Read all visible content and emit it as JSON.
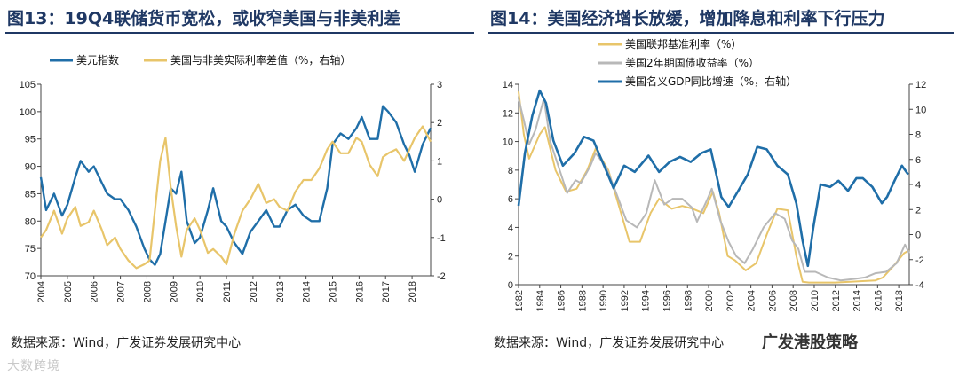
{
  "left": {
    "title": "图13：19Q4联储货币宽松，或收窄美国与非美利差",
    "source": "数据来源：Wind，广发证券发展研究中心"
  },
  "right": {
    "title": "图14：美国经济增长放缓，增加降息和利率下行压力",
    "source": "数据来源：Wind，广发证券发展研究中心"
  },
  "watermarks": {
    "bottom_left": "大数跨境",
    "bottom_right": "广发港股策略"
  },
  "colors": {
    "blue": "#1f6ea8",
    "gold": "#e8c56a",
    "gray": "#b8b8b8"
  },
  "chart_data": [
    {
      "type": "line",
      "title": "19Q4联储货币宽松，或收窄美国与非美利差",
      "xlabel": "",
      "ylabel": "",
      "x_ticks": [
        "2004",
        "2005",
        "2006",
        "2007",
        "2008",
        "2009",
        "2010",
        "2011",
        "2012",
        "2013",
        "2014",
        "2015",
        "2016",
        "2017",
        "2018"
      ],
      "xlim": [
        2004,
        2018.7
      ],
      "ylim": [
        70,
        105
      ],
      "y_ticks": [
        "70",
        "75",
        "80",
        "85",
        "90",
        "95",
        "100",
        "105"
      ],
      "y2lim": [
        -2,
        3
      ],
      "y2_ticks": [
        "-2",
        "-1",
        "0",
        "1",
        "2",
        "3"
      ],
      "legend": "top",
      "series": [
        {
          "name": "美元指数",
          "axis": "left",
          "color": "#1f6ea8",
          "x": [
            2004.0,
            2004.2,
            2004.5,
            2004.8,
            2005.0,
            2005.3,
            2005.5,
            2005.8,
            2006.0,
            2006.3,
            2006.5,
            2006.8,
            2007.0,
            2007.3,
            2007.6,
            2007.9,
            2008.1,
            2008.3,
            2008.5,
            2008.7,
            2008.9,
            2009.1,
            2009.3,
            2009.5,
            2009.8,
            2010.0,
            2010.3,
            2010.5,
            2010.8,
            2011.0,
            2011.3,
            2011.6,
            2011.9,
            2012.2,
            2012.5,
            2012.8,
            2013.0,
            2013.3,
            2013.6,
            2013.9,
            2014.2,
            2014.5,
            2014.8,
            2015.0,
            2015.3,
            2015.6,
            2015.9,
            2016.1,
            2016.4,
            2016.7,
            2016.9,
            2017.1,
            2017.4,
            2017.7,
            2017.9,
            2018.1,
            2018.4,
            2018.7
          ],
          "values": [
            88,
            82,
            85,
            81,
            83,
            88,
            91,
            89,
            90,
            87,
            85,
            84,
            84,
            82,
            79,
            75,
            73,
            72,
            74,
            80,
            86,
            85,
            89,
            80,
            76,
            77,
            82,
            86,
            80,
            79,
            76,
            74,
            78,
            80,
            82,
            79,
            79,
            82,
            83,
            81,
            80,
            80,
            86,
            94,
            96,
            95,
            97,
            99,
            95,
            95,
            101,
            100,
            98,
            94,
            92,
            89,
            94,
            97
          ]
        },
        {
          "name": "美国与非美实际利率差值（%，右轴）",
          "axis": "right",
          "color": "#e8c56a",
          "x": [
            2004.0,
            2004.2,
            2004.5,
            2004.8,
            2005.0,
            2005.3,
            2005.5,
            2005.8,
            2006.0,
            2006.3,
            2006.5,
            2006.8,
            2007.0,
            2007.3,
            2007.6,
            2007.9,
            2008.1,
            2008.3,
            2008.5,
            2008.7,
            2008.9,
            2009.1,
            2009.3,
            2009.5,
            2009.8,
            2010.0,
            2010.3,
            2010.5,
            2010.8,
            2011.0,
            2011.3,
            2011.6,
            2011.9,
            2012.2,
            2012.5,
            2012.8,
            2013.0,
            2013.3,
            2013.6,
            2013.9,
            2014.2,
            2014.5,
            2014.8,
            2015.0,
            2015.3,
            2015.6,
            2015.9,
            2016.1,
            2016.4,
            2016.7,
            2016.9,
            2017.1,
            2017.4,
            2017.7,
            2017.9,
            2018.1,
            2018.4,
            2018.7
          ],
          "values": [
            -1.0,
            -0.8,
            -0.3,
            -0.9,
            -0.5,
            -0.2,
            -0.7,
            -0.6,
            -0.3,
            -0.8,
            -1.2,
            -1.0,
            -1.3,
            -1.6,
            -1.8,
            -1.7,
            -1.6,
            -0.3,
            1.0,
            1.6,
            0.3,
            -0.7,
            -1.5,
            -0.8,
            -0.5,
            -0.8,
            -1.4,
            -1.3,
            -1.5,
            -1.7,
            -0.9,
            -0.3,
            0.0,
            0.4,
            -0.1,
            0.0,
            -0.2,
            -0.3,
            0.2,
            0.5,
            0.5,
            0.8,
            1.3,
            1.5,
            1.2,
            1.2,
            1.6,
            1.5,
            0.9,
            0.6,
            1.1,
            1.2,
            1.3,
            1.0,
            1.3,
            1.6,
            1.9,
            1.5
          ]
        }
      ]
    },
    {
      "type": "line",
      "title": "美国经济增长放缓，增加降息和利率下行压力",
      "xlabel": "",
      "ylabel": "",
      "x_ticks": [
        "1982",
        "1984",
        "1986",
        "1988",
        "1990",
        "1992",
        "1994",
        "1996",
        "1998",
        "2000",
        "2002",
        "2004",
        "2006",
        "2008",
        "2010",
        "2012",
        "2014",
        "2016",
        "2018"
      ],
      "xlim": [
        1982,
        2019
      ],
      "ylim": [
        0,
        14
      ],
      "y_ticks": [
        "0",
        "2",
        "4",
        "6",
        "8",
        "10",
        "12",
        "14"
      ],
      "y2lim": [
        -4,
        12
      ],
      "y2_ticks": [
        "-4",
        "-2",
        "0",
        "2",
        "4",
        "6",
        "8",
        "10",
        "12"
      ],
      "legend": "top-left",
      "series": [
        {
          "name": "美国联邦基准利率（%）",
          "axis": "left",
          "color": "#e8c56a",
          "x": [
            1982.0,
            1982.5,
            1983.0,
            1984.0,
            1984.5,
            1985.5,
            1986.5,
            1987.5,
            1988.5,
            1989.3,
            1990.5,
            1991.5,
            1992.5,
            1993.5,
            1994.5,
            1995.3,
            1996.5,
            1997.5,
            1998.5,
            1999.5,
            2000.4,
            2001.0,
            2001.8,
            2002.5,
            2003.5,
            2004.5,
            2005.5,
            2006.5,
            2007.5,
            2008.3,
            2008.9,
            2009.5,
            2012.0,
            2015.8,
            2016.5,
            2017.5,
            2018.5,
            2019.0
          ],
          "values": [
            13.5,
            10.5,
            8.8,
            10.5,
            11.0,
            8.0,
            6.5,
            6.7,
            8.0,
            9.5,
            8.0,
            5.5,
            3.0,
            3.0,
            5.0,
            6.0,
            5.3,
            5.5,
            5.3,
            5.0,
            6.5,
            5.0,
            2.0,
            1.7,
            1.0,
            1.5,
            3.5,
            5.3,
            5.2,
            2.0,
            0.2,
            0.15,
            0.15,
            0.3,
            0.5,
            1.3,
            2.2,
            2.4
          ]
        },
        {
          "name": "美国2年期国债收益率（%）",
          "axis": "left",
          "color": "#b8b8b8",
          "x": [
            1982.0,
            1982.5,
            1983.0,
            1983.6,
            1984.4,
            1985.0,
            1985.8,
            1986.6,
            1987.4,
            1987.9,
            1988.8,
            1989.3,
            1990.3,
            1991.2,
            1992.2,
            1993.2,
            1994.1,
            1994.9,
            1995.8,
            1996.6,
            1997.5,
            1998.4,
            1998.9,
            1999.9,
            2000.3,
            2001.1,
            2001.9,
            2002.6,
            2003.4,
            2004.2,
            2005.2,
            2006.3,
            2007.2,
            2007.9,
            2008.5,
            2009.1,
            2010.1,
            2011.3,
            2012.5,
            2013.8,
            2014.8,
            2015.8,
            2016.8,
            2017.8,
            2018.6,
            2019.0
          ],
          "values": [
            13.0,
            11.5,
            9.8,
            10.8,
            13.0,
            10.0,
            8.2,
            6.4,
            7.3,
            7.1,
            8.3,
            9.2,
            8.2,
            6.5,
            4.5,
            4.0,
            5.0,
            7.3,
            5.6,
            6.0,
            6.0,
            5.4,
            4.4,
            6.0,
            6.7,
            4.5,
            3.0,
            2.0,
            1.5,
            2.5,
            4.0,
            5.0,
            4.6,
            3.1,
            2.5,
            0.9,
            0.9,
            0.5,
            0.3,
            0.4,
            0.5,
            0.8,
            0.9,
            1.5,
            2.8,
            2.2
          ]
        },
        {
          "name": "美国名义GDP同比增速（%，右轴）",
          "axis": "right",
          "color": "#1f6ea8",
          "x": [
            1982.0,
            1982.6,
            1983.3,
            1984.0,
            1984.6,
            1985.3,
            1986.2,
            1987.3,
            1988.2,
            1989.1,
            1990.1,
            1991.0,
            1992.0,
            1993.0,
            1994.3,
            1995.3,
            1996.3,
            1997.3,
            1998.3,
            1999.3,
            2000.2,
            2001.2,
            2001.9,
            2002.8,
            2003.7,
            2004.6,
            2005.5,
            2006.5,
            2007.5,
            2008.3,
            2008.9,
            2009.4,
            2009.9,
            2010.6,
            2011.5,
            2012.3,
            2013.2,
            2014.0,
            2014.6,
            2015.5,
            2016.4,
            2016.9,
            2017.6,
            2018.3,
            2018.9
          ],
          "values": [
            2.3,
            6.5,
            9.5,
            11.5,
            10.5,
            7.5,
            5.5,
            6.5,
            7.8,
            7.5,
            5.5,
            3.7,
            5.5,
            5.0,
            6.3,
            5.0,
            5.8,
            6.2,
            5.8,
            6.5,
            6.8,
            3.0,
            2.2,
            3.5,
            4.8,
            7.0,
            6.8,
            5.5,
            4.8,
            2.5,
            -0.5,
            -2.5,
            0.5,
            4.0,
            3.8,
            4.3,
            3.5,
            4.5,
            4.5,
            3.8,
            2.5,
            3.0,
            4.3,
            5.5,
            4.8
          ]
        }
      ]
    }
  ]
}
